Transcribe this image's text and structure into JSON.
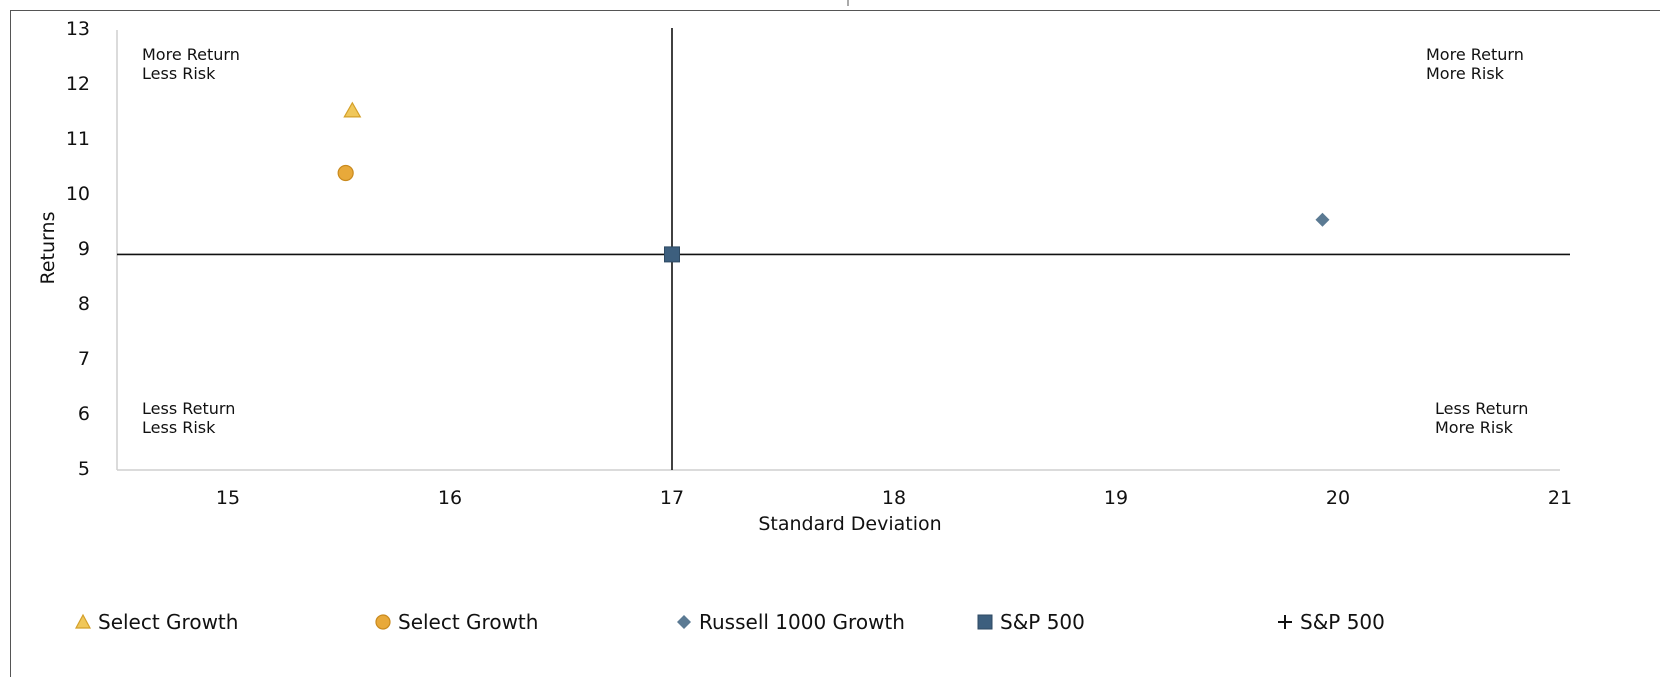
{
  "chart_data": {
    "type": "scatter",
    "xlabel": "Standard Deviation",
    "ylabel": "Returns",
    "xlim": [
      14.5,
      21
    ],
    "ylim": [
      5,
      13
    ],
    "xticks": [
      "15",
      "16",
      "17",
      "18",
      "19",
      "20",
      "21"
    ],
    "yticks": [
      "5",
      "6",
      "7",
      "8",
      "9",
      "10",
      "11",
      "12",
      "13"
    ],
    "reference_lines": {
      "x": 17.0,
      "y": 8.92
    },
    "quadrant_labels": {
      "top_left": [
        "More Return",
        "Less Risk"
      ],
      "top_right": [
        "More Return",
        "More Risk"
      ],
      "bottom_left": [
        "Less Return",
        "Less Risk"
      ],
      "bottom_right": [
        "Less Return",
        "More Risk"
      ]
    },
    "series": [
      {
        "name": "Select Growth",
        "marker": "triangle",
        "color": "#F0C75A",
        "stroke": "#D4A02A",
        "points": [
          [
            15.56,
            11.53
          ]
        ]
      },
      {
        "name": "Select Growth",
        "marker": "circle",
        "color": "#E8A93A",
        "stroke": "#C98A1E",
        "points": [
          [
            15.53,
            10.4
          ]
        ]
      },
      {
        "name": "Russell 1000 Growth",
        "marker": "diamond",
        "color": "#5B7A93",
        "stroke": "#5B7A93",
        "points": [
          [
            19.93,
            9.55
          ]
        ]
      },
      {
        "name": "S&P 500",
        "marker": "square",
        "color": "#3D5F7E",
        "stroke": "#2E4A63",
        "points": [
          [
            17.0,
            8.92
          ]
        ]
      },
      {
        "name": "S&P 500",
        "marker": "plus",
        "color": "#111111",
        "stroke": "#111111",
        "points": []
      }
    ],
    "grid": false,
    "legend_position": "bottom"
  }
}
